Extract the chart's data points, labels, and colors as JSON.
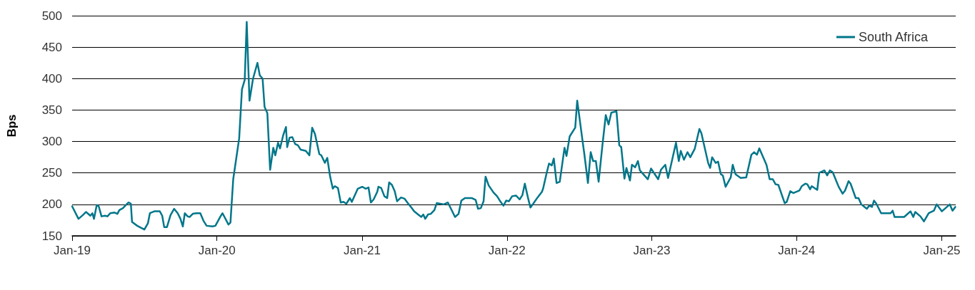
{
  "chart_data": {
    "type": "line",
    "ylabel": "Bps",
    "legend": "top right",
    "grid": "y",
    "marker": "none",
    "line_style": "solid",
    "xlim": [
      "2019-01-01",
      "2025-02-05"
    ],
    "ylim": [
      150,
      500
    ],
    "yticks": [
      150,
      200,
      250,
      300,
      350,
      400,
      450,
      500
    ],
    "xticks": [
      {
        "value": "2019-01-01",
        "label": "Jan-19"
      },
      {
        "value": "2020-01-01",
        "label": "Jan-20"
      },
      {
        "value": "2021-01-01",
        "label": "Jan-21"
      },
      {
        "value": "2022-01-01",
        "label": "Jan-22"
      },
      {
        "value": "2023-01-01",
        "label": "Jan-23"
      },
      {
        "value": "2024-01-01",
        "label": "Jan-24"
      },
      {
        "value": "2025-01-01",
        "label": "Jan-25"
      }
    ],
    "x": [
      "2019-01-01",
      "2019-01-17",
      "2019-01-28",
      "2019-02-05",
      "2019-02-16",
      "2019-02-21",
      "2019-02-25",
      "2019-03-04",
      "2019-03-09",
      "2019-03-16",
      "2019-03-25",
      "2019-03-31",
      "2019-04-07",
      "2019-04-18",
      "2019-04-25",
      "2019-04-30",
      "2019-05-09",
      "2019-05-18",
      "2019-05-23",
      "2019-05-29",
      "2019-06-01",
      "2019-06-14",
      "2019-06-26",
      "2019-07-02",
      "2019-07-11",
      "2019-07-16",
      "2019-07-27",
      "2019-08-10",
      "2019-08-16",
      "2019-08-21",
      "2019-08-28",
      "2019-09-06",
      "2019-09-15",
      "2019-09-24",
      "2019-10-01",
      "2019-10-07",
      "2019-10-12",
      "2019-10-19",
      "2019-10-24",
      "2019-11-01",
      "2019-11-10",
      "2019-11-20",
      "2019-11-28",
      "2019-12-06",
      "2019-12-21",
      "2019-12-28",
      "2020-01-10",
      "2020-01-15",
      "2020-01-30",
      "2020-02-04",
      "2020-02-11",
      "2020-02-26",
      "2020-03-04",
      "2020-03-11",
      "2020-03-16",
      "2020-03-23",
      "2020-04-01",
      "2020-04-12",
      "2020-04-18",
      "2020-04-25",
      "2020-04-30",
      "2020-05-07",
      "2020-05-14",
      "2020-05-22",
      "2020-05-27",
      "2020-06-03",
      "2020-06-08",
      "2020-06-16",
      "2020-06-23",
      "2020-06-26",
      "2020-07-02",
      "2020-07-09",
      "2020-07-16",
      "2020-07-23",
      "2020-07-30",
      "2020-08-12",
      "2020-08-21",
      "2020-08-28",
      "2020-09-04",
      "2020-09-15",
      "2020-09-20",
      "2020-09-29",
      "2020-10-05",
      "2020-10-12",
      "2020-10-19",
      "2020-10-24",
      "2020-11-01",
      "2020-11-08",
      "2020-11-15",
      "2020-11-22",
      "2020-12-01",
      "2020-12-06",
      "2020-12-21",
      "2021-01-01",
      "2021-01-10",
      "2021-01-17",
      "2021-01-23",
      "2021-01-30",
      "2021-02-08",
      "2021-02-11",
      "2021-02-18",
      "2021-02-26",
      "2021-03-05",
      "2021-03-10",
      "2021-03-17",
      "2021-03-24",
      "2021-03-30",
      "2021-04-09",
      "2021-04-18",
      "2021-04-26",
      "2021-05-05",
      "2021-05-12",
      "2021-05-22",
      "2021-05-30",
      "2021-06-04",
      "2021-06-09",
      "2021-06-16",
      "2021-06-23",
      "2021-07-02",
      "2021-07-08",
      "2021-07-26",
      "2021-08-05",
      "2021-08-16",
      "2021-08-23",
      "2021-09-01",
      "2021-09-08",
      "2021-09-17",
      "2021-10-05",
      "2021-10-14",
      "2021-10-20",
      "2021-10-27",
      "2021-11-03",
      "2021-11-08",
      "2021-11-16",
      "2021-11-28",
      "2021-12-07",
      "2021-12-16",
      "2021-12-23",
      "2021-12-30",
      "2022-01-06",
      "2022-01-14",
      "2022-01-24",
      "2022-02-02",
      "2022-02-09",
      "2022-02-15",
      "2022-02-22",
      "2022-03-01",
      "2022-03-08",
      "2022-03-19",
      "2022-03-30",
      "2022-04-02",
      "2022-04-11",
      "2022-04-17",
      "2022-04-24",
      "2022-04-29",
      "2022-05-06",
      "2022-05-14",
      "2022-05-26",
      "2022-05-31",
      "2022-06-08",
      "2022-06-22",
      "2022-06-27",
      "2022-07-10",
      "2022-07-15",
      "2022-07-24",
      "2022-07-31",
      "2022-08-06",
      "2022-08-13",
      "2022-08-20",
      "2022-08-29",
      "2022-09-07",
      "2022-09-14",
      "2022-09-21",
      "2022-10-04",
      "2022-10-11",
      "2022-10-16",
      "2022-10-24",
      "2022-10-29",
      "2022-11-07",
      "2022-11-12",
      "2022-11-20",
      "2022-11-27",
      "2022-12-02",
      "2022-12-22",
      "2022-12-30",
      "2023-01-17",
      "2023-01-24",
      "2023-02-04",
      "2023-02-11",
      "2023-03-03",
      "2023-03-10",
      "2023-03-15",
      "2023-03-23",
      "2023-04-01",
      "2023-04-08",
      "2023-04-19",
      "2023-05-01",
      "2023-05-06",
      "2023-05-23",
      "2023-05-28",
      "2023-06-02",
      "2023-06-11",
      "2023-06-17",
      "2023-06-24",
      "2023-06-29",
      "2023-07-06",
      "2023-07-19",
      "2023-07-24",
      "2023-07-31",
      "2023-08-13",
      "2023-08-27",
      "2023-09-09",
      "2023-09-16",
      "2023-09-23",
      "2023-09-29",
      "2023-10-17",
      "2023-10-25",
      "2023-11-02",
      "2023-11-09",
      "2023-11-16",
      "2023-12-02",
      "2023-12-07",
      "2023-12-16",
      "2023-12-24",
      "2024-01-08",
      "2024-01-14",
      "2024-01-23",
      "2024-01-28",
      "2024-02-04",
      "2024-02-08",
      "2024-02-22",
      "2024-02-27",
      "2024-03-11",
      "2024-03-18",
      "2024-03-25",
      "2024-04-01",
      "2024-04-16",
      "2024-04-26",
      "2024-05-02",
      "2024-05-11",
      "2024-05-16",
      "2024-05-29",
      "2024-06-05",
      "2024-06-12",
      "2024-06-26",
      "2024-07-02",
      "2024-07-09",
      "2024-07-14",
      "2024-07-20",
      "2024-08-01",
      "2024-08-25",
      "2024-08-30",
      "2024-09-04",
      "2024-09-28",
      "2024-10-14",
      "2024-10-21",
      "2024-10-26",
      "2024-11-08",
      "2024-11-17",
      "2024-11-29",
      "2024-12-12",
      "2024-12-19",
      "2025-01-01",
      "2025-01-21",
      "2025-01-28",
      "2025-02-04"
    ],
    "series": [
      {
        "name": "South Africa",
        "color": "#00768a",
        "values": [
          197,
          177,
          183,
          188,
          182,
          186,
          177,
          199,
          197,
          181,
          182,
          181,
          186,
          187,
          185,
          191,
          194,
          200,
          203,
          201,
          172,
          166,
          162,
          160,
          170,
          186,
          189,
          189,
          182,
          164,
          164,
          183,
          193,
          186,
          177,
          165,
          186,
          181,
          180,
          185,
          186,
          186,
          174,
          166,
          165,
          166,
          181,
          186,
          168,
          171,
          240,
          305,
          383,
          398,
          490,
          365,
          400,
          425,
          405,
          400,
          355,
          345,
          255,
          290,
          278,
          298,
          289,
          310,
          323,
          291,
          306,
          307,
          296,
          294,
          287,
          285,
          278,
          322,
          312,
          280,
          278,
          266,
          274,
          245,
          225,
          229,
          226,
          203,
          204,
          201,
          210,
          204,
          225,
          228,
          225,
          227,
          203,
          208,
          220,
          228,
          226,
          213,
          210,
          235,
          231,
          221,
          205,
          211,
          209,
          202,
          195,
          189,
          184,
          180,
          184,
          177,
          184,
          185,
          191,
          202,
          200,
          203,
          189,
          180,
          185,
          206,
          210,
          210,
          207,
          193,
          194,
          205,
          244,
          230,
          219,
          213,
          204,
          198,
          206,
          205,
          213,
          214,
          208,
          215,
          233,
          213,
          195,
          201,
          211,
          220,
          225,
          250,
          265,
          262,
          273,
          234,
          236,
          290,
          277,
          308,
          322,
          365,
          303,
          280,
          234,
          283,
          269,
          269,
          236,
          291,
          342,
          327,
          346,
          348,
          294,
          291,
          241,
          258,
          238,
          263,
          259,
          269,
          254,
          240,
          257,
          240,
          255,
          263,
          242,
          298,
          269,
          285,
          271,
          283,
          275,
          288,
          320,
          313,
          266,
          258,
          275,
          266,
          268,
          248,
          246,
          228,
          243,
          263,
          248,
          242,
          243,
          279,
          283,
          279,
          289,
          263,
          240,
          240,
          232,
          231,
          202,
          204,
          221,
          218,
          222,
          229,
          233,
          232,
          224,
          229,
          223,
          250,
          254,
          246,
          254,
          251,
          228,
          217,
          222,
          237,
          233,
          210,
          210,
          200,
          193,
          198,
          196,
          206,
          201,
          186,
          186,
          190,
          180,
          180,
          189,
          180,
          188,
          181,
          173,
          186,
          190,
          200,
          189,
          200,
          190,
          196
        ]
      }
    ]
  }
}
